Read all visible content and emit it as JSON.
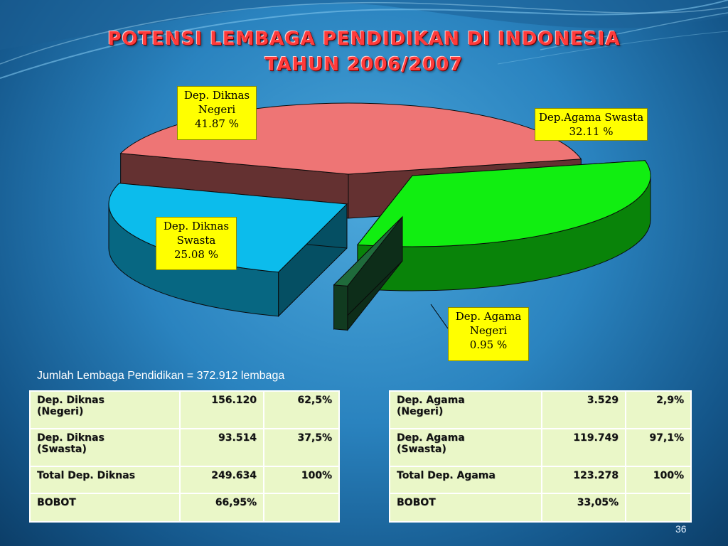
{
  "slide": {
    "title_line1": "POTENSI LEMBAGA PENDIDIKAN DI INDONESIA",
    "title_line2": "TAHUN 2006/2007",
    "total_note": "Jumlah Lembaga Pendidikan = 372.912 lembaga",
    "page_number": "36"
  },
  "chart_data": {
    "type": "pie",
    "title": "POTENSI LEMBAGA PENDIDIKAN DI INDONESIA TAHUN 2006/2007",
    "slices": [
      {
        "label": "Dep. Diknas Negeri",
        "value": 41.87,
        "value_text": "41.87 %",
        "color": "#ee7575"
      },
      {
        "label": "Dep.Agama Swasta",
        "value": 32.11,
        "value_text": "32.11 %",
        "color": "#11ee11"
      },
      {
        "label": "Dep. Agama Negeri",
        "value": 0.95,
        "value_text": "0.95 %",
        "color": "#1f6b3b"
      },
      {
        "label": "Dep. Diknas Swasta",
        "value": 25.08,
        "value_text": "25.08 %",
        "color": "#0cbcec"
      }
    ],
    "labels": {
      "diknas_negeri": [
        "Dep. Diknas",
        "Negeri",
        "41.87 %"
      ],
      "agama_swasta": [
        "Dep.Agama Swasta",
        "32.11 %"
      ],
      "diknas_swasta": [
        "Dep. Diknas",
        "Swasta",
        "25.08 %"
      ],
      "agama_negeri": [
        "Dep. Agama",
        "Negeri",
        "0.95 %"
      ]
    },
    "legend_position": "none"
  },
  "tables": {
    "left": {
      "rows": [
        [
          "Dep. Diknas\n(Negeri)",
          "156.120",
          "62,5%"
        ],
        [
          "Dep. Diknas\n(Swasta)",
          "93.514",
          "37,5%"
        ],
        [
          "Total Dep. Diknas",
          "249.634",
          "100%"
        ],
        [
          "BOBOT",
          "66,95%",
          ""
        ]
      ]
    },
    "right": {
      "rows": [
        [
          "Dep. Agama\n(Negeri)",
          "3.529",
          "2,9%"
        ],
        [
          "Dep. Agama\n(Swasta)",
          "119.749",
          "97,1%"
        ],
        [
          "Total Dep. Agama",
          "123.278",
          "100%"
        ],
        [
          "BOBOT",
          "33,05%",
          ""
        ]
      ]
    }
  }
}
